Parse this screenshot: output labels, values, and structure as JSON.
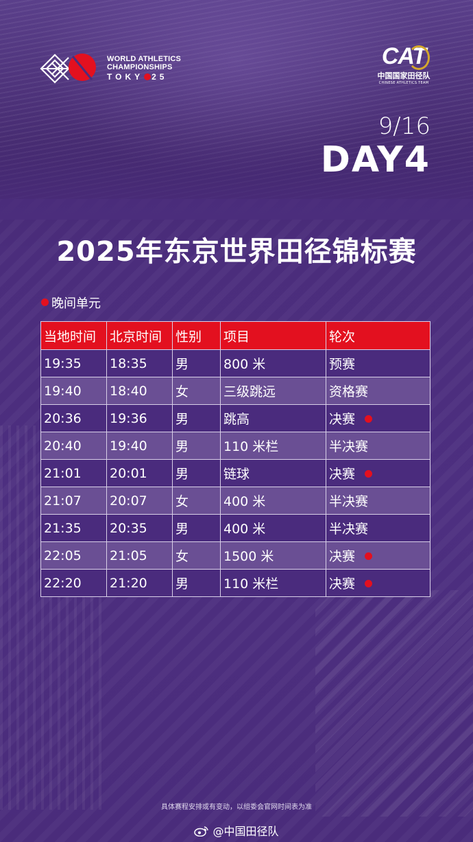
{
  "event_logo": {
    "line1": "WORLD ATHLETICS",
    "line2": "CHAMPIONSHIPS",
    "line3_left": "TOKY",
    "line3_right": "25"
  },
  "team_logo": {
    "mark": "CAT",
    "name_cn": "中国国家田径队",
    "name_en": "CHINESE ATHLETICS TEAM"
  },
  "date": "9/16",
  "day": "DAY4",
  "title": "2025年东京世界田径锦标赛",
  "session": "晚间单元",
  "table": {
    "headers": [
      "当地时间",
      "北京时间",
      "性别",
      "项目",
      "轮次"
    ],
    "rows": [
      {
        "local": "19:35",
        "beijing": "18:35",
        "gender": "男",
        "event": "800 米",
        "round": "预赛",
        "final": false
      },
      {
        "local": "19:40",
        "beijing": "18:40",
        "gender": "女",
        "event": "三级跳远",
        "round": "资格赛",
        "final": false
      },
      {
        "local": "20:36",
        "beijing": "19:36",
        "gender": "男",
        "event": "跳高",
        "round": "决赛",
        "final": true
      },
      {
        "local": "20:40",
        "beijing": "19:40",
        "gender": "男",
        "event": "110 米栏",
        "round": "半决赛",
        "final": false
      },
      {
        "local": "21:01",
        "beijing": "20:01",
        "gender": "男",
        "event": "链球",
        "round": "决赛",
        "final": true
      },
      {
        "local": "21:07",
        "beijing": "20:07",
        "gender": "女",
        "event": "400 米",
        "round": "半决赛",
        "final": false
      },
      {
        "local": "21:35",
        "beijing": "20:35",
        "gender": "男",
        "event": "400 米",
        "round": "半决赛",
        "final": false
      },
      {
        "local": "22:05",
        "beijing": "21:05",
        "gender": "女",
        "event": "1500 米",
        "round": "决赛",
        "final": true
      },
      {
        "local": "22:20",
        "beijing": "21:20",
        "gender": "男",
        "event": "110 米栏",
        "round": "决赛",
        "final": true
      }
    ]
  },
  "note": "具体赛程安排或有变动，以组委会官网时间表为准",
  "weibo_handle": "@中国田径队",
  "icons": {
    "event_logo": "world-athletics-tokyo-logo-icon",
    "weibo": "weibo-icon",
    "final_marker": "red-dot-icon"
  },
  "colors": {
    "background": "#4b2d7c",
    "accent_red": "#e3101f",
    "row_dark": "#4a2b7d",
    "row_light": "#6a4f94",
    "gold": "#d4a72c"
  }
}
